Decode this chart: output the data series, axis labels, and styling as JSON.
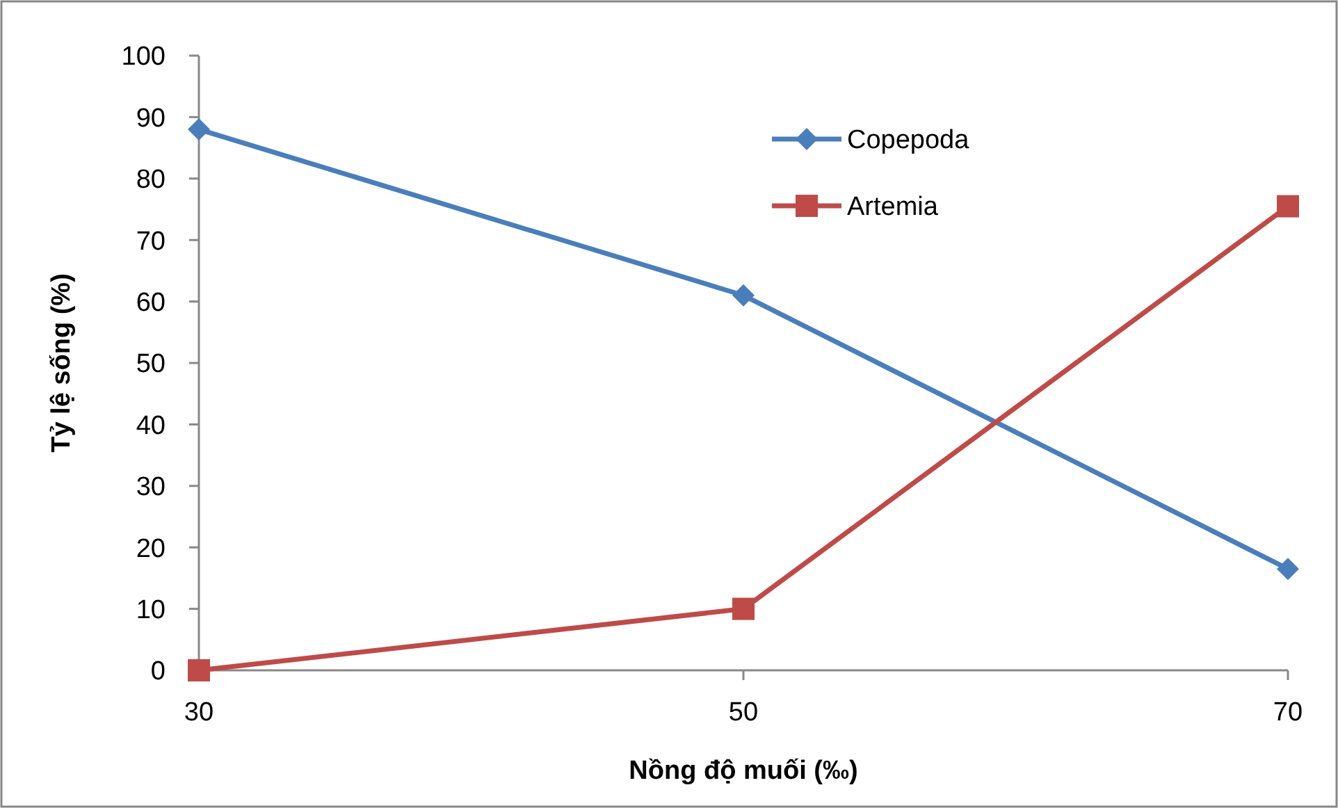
{
  "chart_data": {
    "type": "line",
    "xlabel": "Nồng độ muối (‰)",
    "ylabel": "Tỷ lệ sống (%)",
    "x": [
      30,
      50,
      70
    ],
    "xlim": [
      30,
      70
    ],
    "xticks": [
      30,
      50,
      70
    ],
    "ylim": [
      0,
      100
    ],
    "yticks": [
      0,
      10,
      20,
      30,
      40,
      50,
      60,
      70,
      80,
      90,
      100
    ],
    "series": [
      {
        "name": "Copepoda",
        "color": "#4a7ebb",
        "marker": "diamond",
        "values": [
          88,
          61,
          16.5
        ]
      },
      {
        "name": "Artemia",
        "color": "#be4b48",
        "marker": "square",
        "values": [
          0,
          10,
          75.5
        ]
      }
    ],
    "grid": false,
    "legend": "top right",
    "line_style": "solid"
  }
}
